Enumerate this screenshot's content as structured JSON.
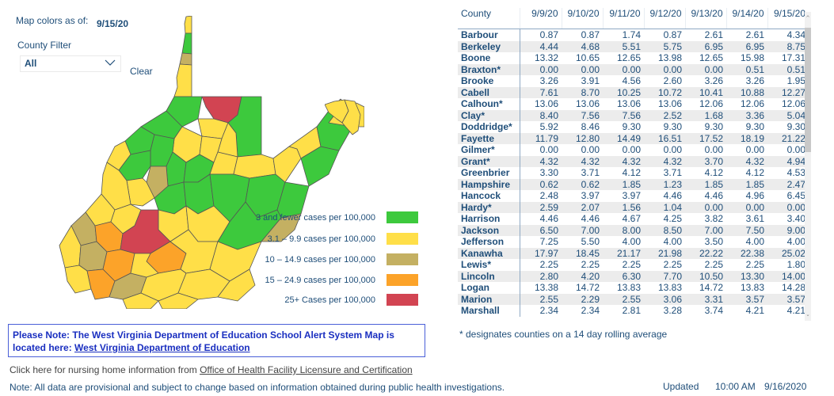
{
  "header": {
    "map_colors_label": "Map colors as of:",
    "map_colors_date": "9/15/20",
    "county_filter_label": "County Filter",
    "county_filter_value": "All",
    "clear_label": "Clear"
  },
  "legend": {
    "items": [
      {
        "label": "3 and fewer cases per 100,000",
        "color": "#3dc93d"
      },
      {
        "label": "3.1 – 9.9 cases per 100,000",
        "color": "#ffdf48"
      },
      {
        "label": "10 – 14.9 cases per 100,000",
        "color": "#c4b062"
      },
      {
        "label": "15 – 24.9 cases per 100,000",
        "color": "#fca329"
      },
      {
        "label": "25+ Cases per 100,000",
        "color": "#d24452"
      }
    ]
  },
  "table": {
    "columns": [
      "County",
      "9/9/20",
      "9/10/20",
      "9/11/20",
      "9/12/20",
      "9/13/20",
      "9/14/20",
      "9/15/20"
    ],
    "rows": [
      [
        "Barbour",
        "0.87",
        "0.87",
        "1.74",
        "0.87",
        "2.61",
        "2.61",
        "4.34"
      ],
      [
        "Berkeley",
        "4.44",
        "4.68",
        "5.51",
        "5.75",
        "6.95",
        "6.95",
        "8.75"
      ],
      [
        "Boone",
        "13.32",
        "10.65",
        "12.65",
        "13.98",
        "12.65",
        "15.98",
        "17.31"
      ],
      [
        "Braxton*",
        "0.00",
        "0.00",
        "0.00",
        "0.00",
        "0.00",
        "0.51",
        "0.51"
      ],
      [
        "Brooke",
        "3.26",
        "3.91",
        "4.56",
        "2.60",
        "3.26",
        "3.26",
        "1.95"
      ],
      [
        "Cabell",
        "7.61",
        "8.70",
        "10.25",
        "10.72",
        "10.41",
        "10.88",
        "12.27"
      ],
      [
        "Calhoun*",
        "13.06",
        "13.06",
        "13.06",
        "13.06",
        "12.06",
        "12.06",
        "12.06"
      ],
      [
        "Clay*",
        "8.40",
        "7.56",
        "7.56",
        "2.52",
        "1.68",
        "3.36",
        "5.04"
      ],
      [
        "Doddridge*",
        "5.92",
        "8.46",
        "9.30",
        "9.30",
        "9.30",
        "9.30",
        "9.30"
      ],
      [
        "Fayette",
        "11.79",
        "12.80",
        "14.49",
        "16.51",
        "17.52",
        "18.19",
        "21.22"
      ],
      [
        "Gilmer*",
        "0.00",
        "0.00",
        "0.00",
        "0.00",
        "0.00",
        "0.00",
        "0.00"
      ],
      [
        "Grant*",
        "4.32",
        "4.32",
        "4.32",
        "4.32",
        "3.70",
        "4.32",
        "4.94"
      ],
      [
        "Greenbrier",
        "3.30",
        "3.71",
        "4.12",
        "3.71",
        "4.12",
        "4.12",
        "4.53"
      ],
      [
        "Hampshire",
        "0.62",
        "0.62",
        "1.85",
        "1.23",
        "1.85",
        "1.85",
        "2.47"
      ],
      [
        "Hancock",
        "2.48",
        "3.97",
        "3.97",
        "4.46",
        "4.46",
        "4.96",
        "6.45"
      ],
      [
        "Hardy*",
        "2.59",
        "2.07",
        "1.56",
        "1.04",
        "0.00",
        "0.00",
        "0.00"
      ],
      [
        "Harrison",
        "4.46",
        "4.46",
        "4.67",
        "4.25",
        "3.82",
        "3.61",
        "3.40"
      ],
      [
        "Jackson",
        "6.50",
        "7.00",
        "8.00",
        "8.50",
        "7.00",
        "7.50",
        "9.00"
      ],
      [
        "Jefferson",
        "7.25",
        "5.50",
        "4.00",
        "4.00",
        "3.50",
        "4.00",
        "4.00"
      ],
      [
        "Kanawha",
        "17.97",
        "18.45",
        "21.17",
        "21.98",
        "22.22",
        "22.38",
        "25.02"
      ],
      [
        "Lewis*",
        "2.25",
        "2.25",
        "2.25",
        "2.25",
        "2.25",
        "2.25",
        "1.80"
      ],
      [
        "Lincoln",
        "2.80",
        "4.20",
        "6.30",
        "7.70",
        "10.50",
        "13.30",
        "14.00"
      ],
      [
        "Logan",
        "13.38",
        "14.72",
        "13.83",
        "13.83",
        "14.72",
        "13.83",
        "14.28"
      ],
      [
        "Marion",
        "2.55",
        "2.29",
        "2.55",
        "3.06",
        "3.31",
        "3.57",
        "3.57"
      ],
      [
        "Marshall",
        "2.34",
        "2.34",
        "2.81",
        "3.28",
        "3.74",
        "4.21",
        "4.21"
      ]
    ],
    "footnote": "* designates counties on a 14 day rolling average"
  },
  "notice": {
    "text": "Please Note: The West Virginia Department of Education School Alert System Map is located here: ",
    "link": "West Virginia Department of Education"
  },
  "nursing": {
    "text": "Click here for nursing home information from ",
    "link": "Office of Health Facility Licensure and Certification"
  },
  "footer": {
    "provisional": "Note: All data are provisional and subject to change based on information obtained during public health investigations.",
    "updated_label": "Updated",
    "updated_time": "10:00 AM",
    "updated_date": "9/16/2020"
  }
}
